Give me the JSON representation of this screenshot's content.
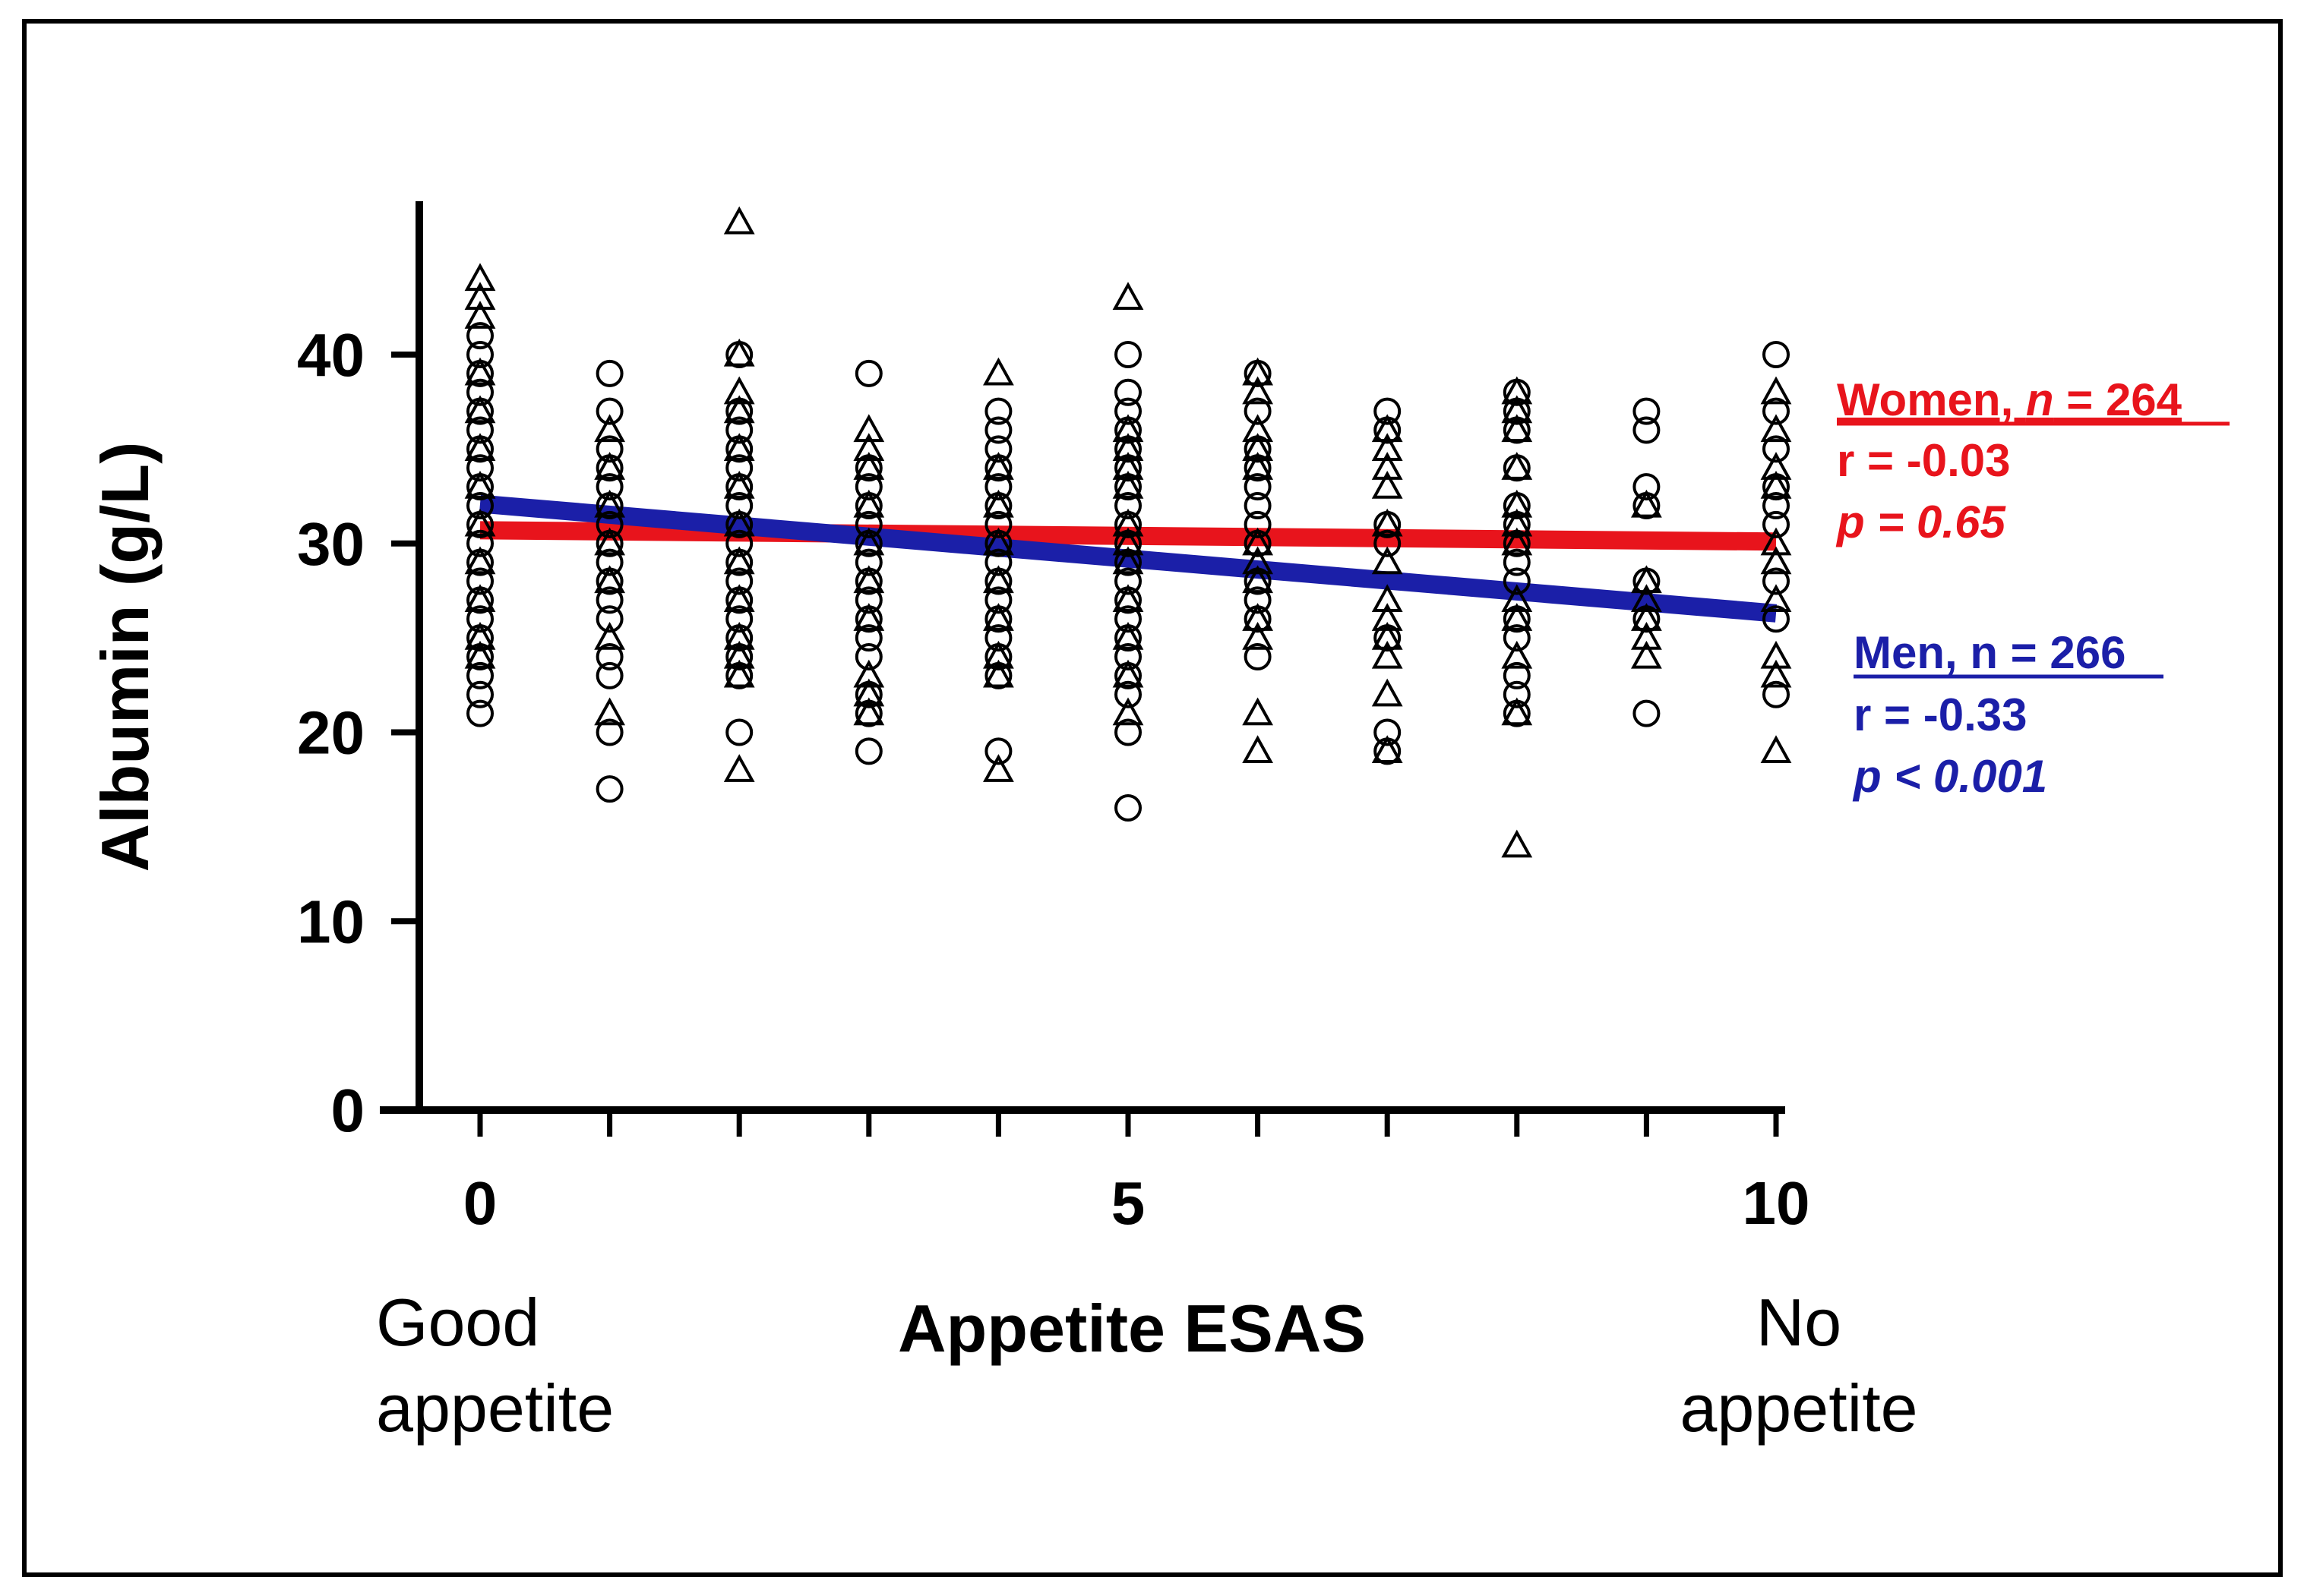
{
  "chart_data": {
    "type": "scatter",
    "title": "",
    "xlabel": "Appetite ESAS",
    "ylabel": "Albumin (g/L)",
    "xlim": [
      0,
      10
    ],
    "ylim": [
      0,
      47
    ],
    "x_ticks": [
      0,
      5,
      10
    ],
    "y_ticks": [
      0,
      10,
      20,
      30,
      40
    ],
    "x_minor_ticks": [
      0,
      1,
      2,
      3,
      4,
      5,
      6,
      7,
      8,
      9,
      10
    ],
    "x_end_labels": {
      "left": [
        "Good",
        "appetite"
      ],
      "right": [
        "No",
        "appetite"
      ]
    },
    "grid": false,
    "series": [
      {
        "name": "Women",
        "marker": "circle",
        "color": "#000000",
        "fit_color": "#e8141c",
        "legend": {
          "title_prefix": "Women, ",
          "title_n": "n",
          "title_suffix": " = 264",
          "r": "r = -0.03",
          "p": "p = 0.65"
        },
        "fit": {
          "x": [
            0,
            10
          ],
          "y": [
            30.7,
            30.1
          ]
        },
        "points": [
          [
            0,
            21
          ],
          [
            0,
            22
          ],
          [
            0,
            23
          ],
          [
            0,
            24
          ],
          [
            0,
            25
          ],
          [
            0,
            26
          ],
          [
            0,
            27
          ],
          [
            0,
            28
          ],
          [
            0,
            29
          ],
          [
            0,
            30
          ],
          [
            0,
            31
          ],
          [
            0,
            32
          ],
          [
            0,
            33
          ],
          [
            0,
            34
          ],
          [
            0,
            35
          ],
          [
            0,
            36
          ],
          [
            0,
            37
          ],
          [
            0,
            38
          ],
          [
            0,
            39
          ],
          [
            0,
            40
          ],
          [
            0,
            41
          ],
          [
            1,
            17
          ],
          [
            1,
            20
          ],
          [
            1,
            23
          ],
          [
            1,
            24
          ],
          [
            1,
            26
          ],
          [
            1,
            27
          ],
          [
            1,
            28
          ],
          [
            1,
            29
          ],
          [
            1,
            30
          ],
          [
            1,
            31
          ],
          [
            1,
            32
          ],
          [
            1,
            33
          ],
          [
            1,
            34
          ],
          [
            1,
            35
          ],
          [
            1,
            37
          ],
          [
            1,
            39
          ],
          [
            2,
            20
          ],
          [
            2,
            23
          ],
          [
            2,
            24
          ],
          [
            2,
            25
          ],
          [
            2,
            26
          ],
          [
            2,
            27
          ],
          [
            2,
            28
          ],
          [
            2,
            29
          ],
          [
            2,
            30
          ],
          [
            2,
            31
          ],
          [
            2,
            32
          ],
          [
            2,
            33
          ],
          [
            2,
            34
          ],
          [
            2,
            35
          ],
          [
            2,
            36
          ],
          [
            2,
            37
          ],
          [
            2,
            40
          ],
          [
            3,
            19
          ],
          [
            3,
            21
          ],
          [
            3,
            22
          ],
          [
            3,
            24
          ],
          [
            3,
            25
          ],
          [
            3,
            26
          ],
          [
            3,
            27
          ],
          [
            3,
            28
          ],
          [
            3,
            29
          ],
          [
            3,
            30
          ],
          [
            3,
            31
          ],
          [
            3,
            32
          ],
          [
            3,
            33
          ],
          [
            3,
            34
          ],
          [
            3,
            39
          ],
          [
            4,
            19
          ],
          [
            4,
            23
          ],
          [
            4,
            24
          ],
          [
            4,
            25
          ],
          [
            4,
            26
          ],
          [
            4,
            27
          ],
          [
            4,
            28
          ],
          [
            4,
            29
          ],
          [
            4,
            30
          ],
          [
            4,
            31
          ],
          [
            4,
            32
          ],
          [
            4,
            33
          ],
          [
            4,
            34
          ],
          [
            4,
            35
          ],
          [
            4,
            36
          ],
          [
            4,
            37
          ],
          [
            5,
            16
          ],
          [
            5,
            20
          ],
          [
            5,
            22
          ],
          [
            5,
            23
          ],
          [
            5,
            24
          ],
          [
            5,
            25
          ],
          [
            5,
            26
          ],
          [
            5,
            27
          ],
          [
            5,
            28
          ],
          [
            5,
            29
          ],
          [
            5,
            30
          ],
          [
            5,
            31
          ],
          [
            5,
            32
          ],
          [
            5,
            33
          ],
          [
            5,
            34
          ],
          [
            5,
            35
          ],
          [
            5,
            36
          ],
          [
            5,
            37
          ],
          [
            5,
            38
          ],
          [
            5,
            40
          ],
          [
            6,
            24
          ],
          [
            6,
            26
          ],
          [
            6,
            27
          ],
          [
            6,
            28
          ],
          [
            6,
            30
          ],
          [
            6,
            31
          ],
          [
            6,
            32
          ],
          [
            6,
            33
          ],
          [
            6,
            34
          ],
          [
            6,
            35
          ],
          [
            6,
            37
          ],
          [
            6,
            39
          ],
          [
            7,
            19
          ],
          [
            7,
            20
          ],
          [
            7,
            25
          ],
          [
            7,
            30
          ],
          [
            7,
            31
          ],
          [
            7,
            36
          ],
          [
            7,
            37
          ],
          [
            8,
            21
          ],
          [
            8,
            22
          ],
          [
            8,
            23
          ],
          [
            8,
            25
          ],
          [
            8,
            26
          ],
          [
            8,
            28
          ],
          [
            8,
            29
          ],
          [
            8,
            30
          ],
          [
            8,
            31
          ],
          [
            8,
            32
          ],
          [
            8,
            34
          ],
          [
            8,
            36
          ],
          [
            8,
            37
          ],
          [
            8,
            38
          ],
          [
            9,
            21
          ],
          [
            9,
            26
          ],
          [
            9,
            28
          ],
          [
            9,
            32
          ],
          [
            9,
            33
          ],
          [
            9,
            36
          ],
          [
            9,
            37
          ],
          [
            10,
            22
          ],
          [
            10,
            26
          ],
          [
            10,
            28
          ],
          [
            10,
            31
          ],
          [
            10,
            32
          ],
          [
            10,
            33
          ],
          [
            10,
            35
          ],
          [
            10,
            37
          ],
          [
            10,
            40
          ]
        ]
      },
      {
        "name": "Men",
        "marker": "triangle",
        "color": "#000000",
        "fit_color": "#1b1fa8",
        "legend": {
          "title_prefix": "Men, n = 266",
          "title_n": "",
          "title_suffix": "",
          "r": "r = -0.33",
          "p": "p < 0.001"
        },
        "fit": {
          "x": [
            0,
            10
          ],
          "y": [
            32.1,
            26.3
          ]
        },
        "points": [
          [
            0,
            24
          ],
          [
            0,
            25
          ],
          [
            0,
            27
          ],
          [
            0,
            29
          ],
          [
            0,
            31
          ],
          [
            0,
            33
          ],
          [
            0,
            35
          ],
          [
            0,
            37
          ],
          [
            0,
            39
          ],
          [
            0,
            42
          ],
          [
            0,
            43
          ],
          [
            0,
            44
          ],
          [
            1,
            21
          ],
          [
            1,
            25
          ],
          [
            1,
            28
          ],
          [
            1,
            30
          ],
          [
            1,
            32
          ],
          [
            1,
            34
          ],
          [
            1,
            36
          ],
          [
            2,
            18
          ],
          [
            2,
            23
          ],
          [
            2,
            24
          ],
          [
            2,
            25
          ],
          [
            2,
            27
          ],
          [
            2,
            29
          ],
          [
            2,
            31
          ],
          [
            2,
            33
          ],
          [
            2,
            35
          ],
          [
            2,
            37
          ],
          [
            2,
            38
          ],
          [
            2,
            40
          ],
          [
            2,
            47
          ],
          [
            3,
            21
          ],
          [
            3,
            22
          ],
          [
            3,
            23
          ],
          [
            3,
            26
          ],
          [
            3,
            28
          ],
          [
            3,
            30
          ],
          [
            3,
            32
          ],
          [
            3,
            34
          ],
          [
            3,
            35
          ],
          [
            3,
            36
          ],
          [
            4,
            18
          ],
          [
            4,
            23
          ],
          [
            4,
            24
          ],
          [
            4,
            26
          ],
          [
            4,
            28
          ],
          [
            4,
            30
          ],
          [
            4,
            32
          ],
          [
            4,
            34
          ],
          [
            4,
            39
          ],
          [
            5,
            21
          ],
          [
            5,
            23
          ],
          [
            5,
            25
          ],
          [
            5,
            27
          ],
          [
            5,
            29
          ],
          [
            5,
            30
          ],
          [
            5,
            31
          ],
          [
            5,
            33
          ],
          [
            5,
            34
          ],
          [
            5,
            35
          ],
          [
            5,
            36
          ],
          [
            5,
            43
          ],
          [
            6,
            19
          ],
          [
            6,
            21
          ],
          [
            6,
            25
          ],
          [
            6,
            26
          ],
          [
            6,
            28
          ],
          [
            6,
            29
          ],
          [
            6,
            30
          ],
          [
            6,
            34
          ],
          [
            6,
            35
          ],
          [
            6,
            36
          ],
          [
            6,
            38
          ],
          [
            6,
            39
          ],
          [
            7,
            19
          ],
          [
            7,
            22
          ],
          [
            7,
            24
          ],
          [
            7,
            25
          ],
          [
            7,
            26
          ],
          [
            7,
            27
          ],
          [
            7,
            29
          ],
          [
            7,
            31
          ],
          [
            7,
            33
          ],
          [
            7,
            34
          ],
          [
            7,
            35
          ],
          [
            7,
            36
          ],
          [
            8,
            14
          ],
          [
            8,
            21
          ],
          [
            8,
            24
          ],
          [
            8,
            26
          ],
          [
            8,
            27
          ],
          [
            8,
            30
          ],
          [
            8,
            31
          ],
          [
            8,
            32
          ],
          [
            8,
            34
          ],
          [
            8,
            36
          ],
          [
            8,
            37
          ],
          [
            8,
            38
          ],
          [
            9,
            24
          ],
          [
            9,
            25
          ],
          [
            9,
            26
          ],
          [
            9,
            27
          ],
          [
            9,
            28
          ],
          [
            9,
            32
          ],
          [
            10,
            19
          ],
          [
            10,
            23
          ],
          [
            10,
            24
          ],
          [
            10,
            27
          ],
          [
            10,
            29
          ],
          [
            10,
            30
          ],
          [
            10,
            33
          ],
          [
            10,
            34
          ],
          [
            10,
            36
          ],
          [
            10,
            38
          ]
        ]
      }
    ]
  }
}
